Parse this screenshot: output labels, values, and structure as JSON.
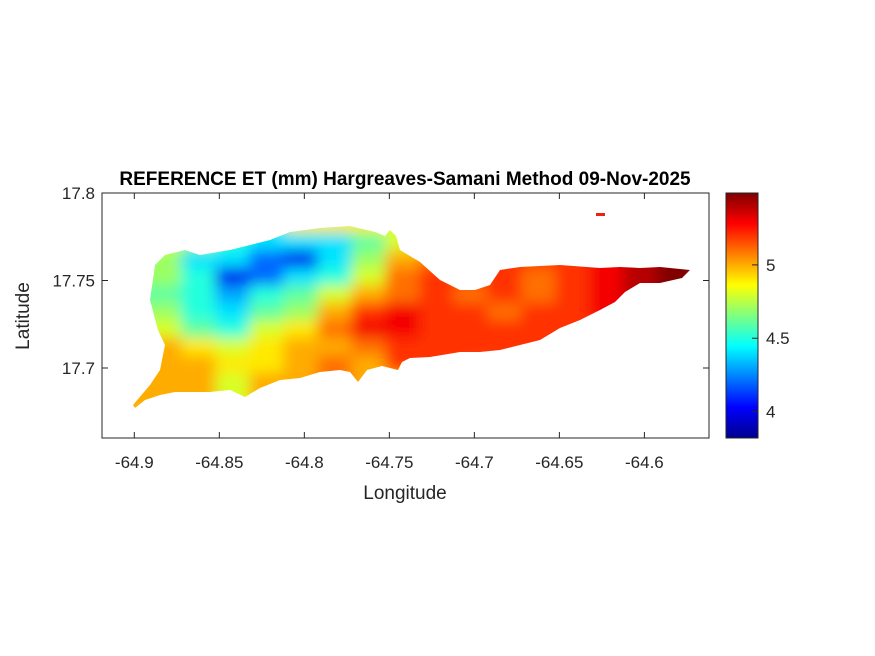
{
  "chart_data": {
    "type": "heatmap",
    "title": "REFERENCE ET (mm) Hargreaves-Samani Method  09-Nov-2025",
    "xlabel": "Longitude",
    "ylabel": "Latitude",
    "xlim": [
      -64.919,
      -64.562
    ],
    "ylim": [
      17.66,
      17.8
    ],
    "xticks": [
      -64.9,
      -64.85,
      -64.8,
      -64.75,
      -64.7,
      -64.65,
      -64.6
    ],
    "xtick_labels": [
      "-64.9",
      "-64.85",
      "-64.8",
      "-64.75",
      "-64.7",
      "-64.65",
      "-64.6"
    ],
    "yticks": [
      17.7,
      17.75,
      17.8
    ],
    "ytick_labels": [
      "17.7",
      "17.75",
      "17.8"
    ],
    "colormap": "jet",
    "clim": [
      3.82,
      5.49
    ],
    "colorbar": {
      "ticks": [
        4,
        4.5,
        5
      ],
      "tick_labels": [
        "4",
        "4.5",
        "5"
      ],
      "placement": "right"
    },
    "grid": false,
    "lon": [
      -64.9,
      -64.88,
      -64.86,
      -64.84,
      -64.82,
      -64.8,
      -64.78,
      -64.76,
      -64.74,
      -64.72,
      -64.7,
      -64.68,
      -64.66,
      -64.64,
      -64.62,
      -64.6,
      -64.58
    ],
    "lat": [
      17.78,
      17.77,
      17.76,
      17.75,
      17.74,
      17.73,
      17.72,
      17.71,
      17.7,
      17.69,
      17.68
    ],
    "values": [
      [
        null,
        null,
        null,
        null,
        null,
        null,
        4.9,
        4.9,
        4.8,
        null,
        null,
        null,
        null,
        null,
        null,
        null,
        null
      ],
      [
        null,
        4.8,
        4.7,
        4.5,
        4.4,
        4.4,
        4.4,
        4.6,
        4.8,
        null,
        null,
        null,
        null,
        null,
        null,
        null,
        null
      ],
      [
        null,
        4.7,
        4.4,
        4.4,
        4.2,
        4.0,
        4.4,
        4.7,
        5.0,
        5.1,
        null,
        null,
        5.2,
        5.2,
        5.3,
        5.4,
        5.5
      ],
      [
        null,
        4.7,
        4.5,
        4.0,
        4.2,
        4.4,
        4.5,
        4.8,
        5.1,
        5.2,
        5.2,
        5.2,
        5.1,
        5.2,
        5.3,
        5.4,
        5.5
      ],
      [
        null,
        4.6,
        4.5,
        4.3,
        4.5,
        4.6,
        4.8,
        5.0,
        5.1,
        5.2,
        5.1,
        5.2,
        5.1,
        5.2,
        5.3,
        null,
        null
      ],
      [
        null,
        4.7,
        4.5,
        4.4,
        4.6,
        4.7,
        5.0,
        5.2,
        5.3,
        5.2,
        5.2,
        5.1,
        5.2,
        5.2,
        null,
        null,
        null
      ],
      [
        null,
        4.8,
        4.6,
        4.5,
        4.8,
        4.9,
        5.1,
        5.3,
        5.3,
        5.2,
        5.2,
        5.2,
        null,
        null,
        null,
        null,
        null
      ],
      [
        null,
        5.0,
        4.9,
        4.8,
        4.9,
        5.0,
        5.0,
        5.1,
        5.2,
        null,
        null,
        null,
        null,
        null,
        null,
        null,
        null
      ],
      [
        null,
        5.0,
        5.0,
        4.9,
        4.9,
        5.0,
        5.1,
        5.0,
        null,
        null,
        null,
        null,
        null,
        null,
        null,
        null,
        null
      ],
      [
        5.0,
        5.0,
        5.0,
        4.8,
        5.0,
        null,
        null,
        null,
        null,
        null,
        null,
        null,
        null,
        null,
        null,
        null,
        null
      ],
      [
        5.0,
        null,
        null,
        null,
        null,
        null,
        null,
        null,
        null,
        null,
        null,
        null,
        null,
        null,
        null,
        null,
        null
      ]
    ]
  }
}
